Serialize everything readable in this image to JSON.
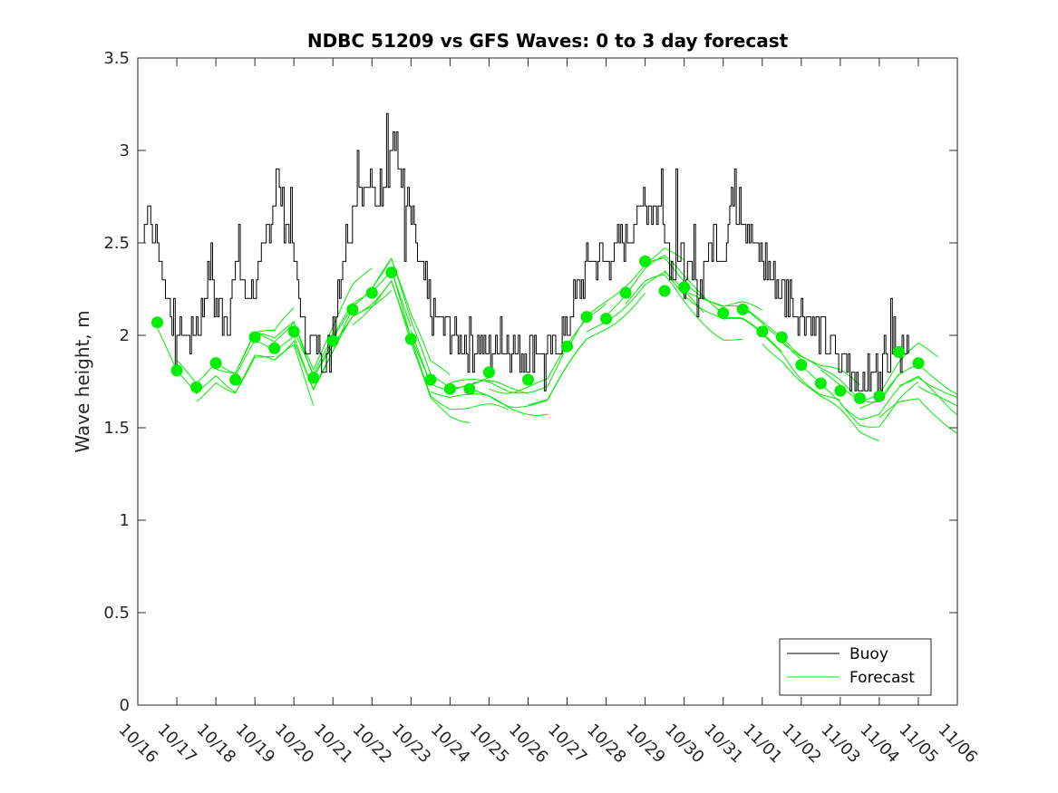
{
  "chart_data": {
    "type": "line",
    "title": "NDBC 51209 vs GFS Waves: 0 to 3 day forecast",
    "xlabel": "",
    "ylabel": "Wave height, m",
    "xlim": [
      0,
      21
    ],
    "ylim": [
      0,
      3.5
    ],
    "x_tick_labels": [
      "10/16",
      "10/17",
      "10/18",
      "10/19",
      "10/20",
      "10/21",
      "10/22",
      "10/23",
      "10/24",
      "10/25",
      "10/26",
      "10/27",
      "10/28",
      "10/29",
      "10/30",
      "10/31",
      "11/01",
      "11/02",
      "11/03",
      "11/04",
      "11/05",
      "11/06"
    ],
    "y_ticks": [
      0,
      0.5,
      1,
      1.5,
      2,
      2.5,
      3,
      3.5
    ],
    "y_tick_labels": [
      "0",
      "0.5",
      "1",
      "1.5",
      "2",
      "2.5",
      "3",
      "3.5"
    ],
    "colors": {
      "buoy": "#000000",
      "forecast": "#00ee00",
      "marker": "#00ee00",
      "axis": "#262626"
    },
    "legend": {
      "placement": "bottom-right",
      "entries": [
        {
          "label": "Buoy",
          "series": "buoy"
        },
        {
          "label": "Forecast",
          "series": "forecast"
        }
      ]
    },
    "buoy_anchors": [
      [
        0.0,
        2.5
      ],
      [
        0.2,
        2.6
      ],
      [
        0.5,
        2.5
      ],
      [
        0.75,
        2.2
      ],
      [
        1.0,
        2.05
      ],
      [
        1.3,
        2.0
      ],
      [
        1.6,
        2.1
      ],
      [
        1.85,
        2.35
      ],
      [
        2.0,
        2.15
      ],
      [
        2.3,
        2.1
      ],
      [
        2.55,
        2.4
      ],
      [
        2.8,
        2.2
      ],
      [
        3.05,
        2.25
      ],
      [
        3.35,
        2.6
      ],
      [
        3.55,
        2.85
      ],
      [
        3.8,
        2.6
      ],
      [
        4.0,
        2.4
      ],
      [
        4.25,
        2.0
      ],
      [
        4.55,
        1.95
      ],
      [
        4.85,
        1.9
      ],
      [
        5.05,
        2.15
      ],
      [
        5.3,
        2.5
      ],
      [
        5.55,
        2.75
      ],
      [
        5.85,
        2.8
      ],
      [
        6.15,
        2.75
      ],
      [
        6.35,
        2.9
      ],
      [
        6.55,
        3.05
      ],
      [
        6.75,
        2.85
      ],
      [
        7.0,
        2.6
      ],
      [
        7.25,
        2.35
      ],
      [
        7.5,
        2.15
      ],
      [
        7.8,
        2.05
      ],
      [
        8.1,
        2.0
      ],
      [
        8.4,
        1.95
      ],
      [
        8.7,
        1.95
      ],
      [
        9.0,
        1.9
      ],
      [
        9.3,
        1.95
      ],
      [
        9.6,
        1.95
      ],
      [
        9.9,
        1.9
      ],
      [
        10.2,
        1.95
      ],
      [
        10.45,
        1.85
      ],
      [
        10.7,
        1.95
      ],
      [
        11.0,
        2.05
      ],
      [
        11.3,
        2.25
      ],
      [
        11.6,
        2.4
      ],
      [
        11.9,
        2.4
      ],
      [
        12.2,
        2.45
      ],
      [
        12.5,
        2.5
      ],
      [
        12.85,
        2.65
      ],
      [
        13.15,
        2.7
      ],
      [
        13.45,
        2.65
      ],
      [
        13.7,
        2.35
      ],
      [
        14.0,
        2.45
      ],
      [
        14.25,
        2.2
      ],
      [
        14.5,
        2.35
      ],
      [
        14.75,
        2.55
      ],
      [
        15.0,
        2.45
      ],
      [
        15.25,
        2.75
      ],
      [
        15.55,
        2.65
      ],
      [
        15.85,
        2.45
      ],
      [
        16.15,
        2.35
      ],
      [
        16.4,
        2.25
      ],
      [
        16.65,
        2.2
      ],
      [
        16.9,
        2.15
      ],
      [
        17.15,
        2.1
      ],
      [
        17.4,
        2.05
      ],
      [
        17.65,
        1.95
      ],
      [
        17.9,
        1.9
      ],
      [
        18.15,
        1.85
      ],
      [
        18.4,
        1.8
      ],
      [
        18.65,
        1.75
      ],
      [
        18.9,
        1.8
      ],
      [
        19.15,
        1.9
      ],
      [
        19.4,
        2.0
      ],
      [
        19.65,
        1.95
      ],
      [
        19.75,
        2.0
      ]
    ],
    "buoy_spikes": [
      [
        0.25,
        2.7
      ],
      [
        0.95,
        1.8
      ],
      [
        1.9,
        2.5
      ],
      [
        2.6,
        2.6
      ],
      [
        3.55,
        2.9
      ],
      [
        3.9,
        2.8
      ],
      [
        4.9,
        1.8
      ],
      [
        5.65,
        3.0
      ],
      [
        6.4,
        3.2
      ],
      [
        6.55,
        3.1
      ],
      [
        6.85,
        2.4
      ],
      [
        7.9,
        2.1
      ],
      [
        9.3,
        2.1
      ],
      [
        10.4,
        1.7
      ],
      [
        12.95,
        2.8
      ],
      [
        13.4,
        2.9
      ],
      [
        13.8,
        2.9
      ],
      [
        14.0,
        2.2
      ],
      [
        14.25,
        2.6
      ],
      [
        15.3,
        2.9
      ],
      [
        15.4,
        2.8
      ],
      [
        16.1,
        2.5
      ],
      [
        16.7,
        2.3
      ],
      [
        17.95,
        1.8
      ],
      [
        18.55,
        1.7
      ],
      [
        19.3,
        2.2
      ],
      [
        19.55,
        1.8
      ]
    ],
    "forecast_markers": [
      [
        0.5,
        2.07
      ],
      [
        1.0,
        1.81
      ],
      [
        1.5,
        1.72
      ],
      [
        2.0,
        1.85
      ],
      [
        2.5,
        1.76
      ],
      [
        3.0,
        1.99
      ],
      [
        3.5,
        1.93
      ],
      [
        4.0,
        2.02
      ],
      [
        4.5,
        1.77
      ],
      [
        5.0,
        1.97
      ],
      [
        5.5,
        2.14
      ],
      [
        6.0,
        2.23
      ],
      [
        6.5,
        2.34
      ],
      [
        7.0,
        1.98
      ],
      [
        7.5,
        1.76
      ],
      [
        8.0,
        1.71
      ],
      [
        8.5,
        1.71
      ],
      [
        9.0,
        1.8
      ],
      [
        10.0,
        1.76
      ],
      [
        11.0,
        1.94
      ],
      [
        11.5,
        2.1
      ],
      [
        12.0,
        2.09
      ],
      [
        12.5,
        2.23
      ],
      [
        13.0,
        2.4
      ],
      [
        13.5,
        2.24
      ],
      [
        14.0,
        2.26
      ],
      [
        15.0,
        2.12
      ],
      [
        15.5,
        2.14
      ],
      [
        16.0,
        2.02
      ],
      [
        16.5,
        1.99
      ],
      [
        17.0,
        1.84
      ],
      [
        17.5,
        1.74
      ],
      [
        18.0,
        1.7
      ],
      [
        18.5,
        1.66
      ],
      [
        19.0,
        1.67
      ],
      [
        19.5,
        1.91
      ],
      [
        20.0,
        1.85
      ]
    ],
    "forecast_base": [
      [
        0.5,
        2.06
      ],
      [
        1.0,
        1.8
      ],
      [
        1.5,
        1.69
      ],
      [
        2.0,
        1.83
      ],
      [
        2.5,
        1.77
      ],
      [
        3.0,
        1.95
      ],
      [
        3.5,
        1.92
      ],
      [
        4.0,
        2.04
      ],
      [
        4.5,
        1.76
      ],
      [
        5.0,
        1.94
      ],
      [
        5.5,
        2.14
      ],
      [
        6.0,
        2.24
      ],
      [
        6.5,
        2.36
      ],
      [
        7.0,
        2.02
      ],
      [
        7.5,
        1.76
      ],
      [
        8.0,
        1.71
      ],
      [
        8.5,
        1.7
      ],
      [
        9.0,
        1.7
      ],
      [
        9.5,
        1.68
      ],
      [
        10.0,
        1.68
      ],
      [
        10.5,
        1.68
      ],
      [
        11.0,
        1.85
      ],
      [
        11.5,
        2.02
      ],
      [
        12.0,
        2.12
      ],
      [
        12.5,
        2.22
      ],
      [
        13.0,
        2.32
      ],
      [
        13.5,
        2.36
      ],
      [
        14.0,
        2.26
      ],
      [
        14.5,
        2.18
      ],
      [
        15.0,
        2.1
      ],
      [
        15.5,
        2.08
      ],
      [
        16.0,
        2.02
      ],
      [
        16.5,
        1.96
      ],
      [
        17.0,
        1.84
      ],
      [
        17.5,
        1.74
      ],
      [
        18.0,
        1.68
      ],
      [
        18.5,
        1.6
      ],
      [
        19.0,
        1.6
      ],
      [
        19.5,
        1.72
      ],
      [
        20.0,
        1.8
      ],
      [
        20.5,
        1.74
      ],
      [
        21.0,
        1.66
      ]
    ],
    "forecast_runs": [
      {
        "start": 0.5,
        "end": 3.5,
        "offset": -0.02
      },
      {
        "start": 1.0,
        "end": 4.0,
        "offset": 0.03
      },
      {
        "start": 1.5,
        "end": 4.5,
        "offset": -0.04
      },
      {
        "start": 2.0,
        "end": 5.0,
        "offset": 0.02
      },
      {
        "start": 2.5,
        "end": 5.5,
        "offset": -0.01
      },
      {
        "start": 3.0,
        "end": 6.0,
        "offset": 0.04
      },
      {
        "start": 3.5,
        "end": 6.5,
        "offset": -0.03
      },
      {
        "start": 4.0,
        "end": 7.0,
        "offset": 0.01
      },
      {
        "start": 4.5,
        "end": 7.5,
        "offset": -0.02
      },
      {
        "start": 5.0,
        "end": 8.0,
        "offset": 0.03
      },
      {
        "start": 5.5,
        "end": 8.5,
        "offset": -0.05
      },
      {
        "start": 6.0,
        "end": 9.0,
        "offset": 0.02
      },
      {
        "start": 6.5,
        "end": 9.5,
        "offset": -0.04
      },
      {
        "start": 7.0,
        "end": 10.0,
        "offset": 0.01
      },
      {
        "start": 7.5,
        "end": 10.5,
        "offset": -0.03
      },
      {
        "start": 8.0,
        "end": 11.0,
        "offset": 0.02
      },
      {
        "start": 8.5,
        "end": 11.5,
        "offset": -0.02
      },
      {
        "start": 9.0,
        "end": 12.0,
        "offset": 0.03
      },
      {
        "start": 10.0,
        "end": 13.0,
        "offset": -0.03
      },
      {
        "start": 11.0,
        "end": 14.0,
        "offset": 0.04
      },
      {
        "start": 11.5,
        "end": 14.5,
        "offset": -0.02
      },
      {
        "start": 12.0,
        "end": 15.0,
        "offset": 0.02
      },
      {
        "start": 12.5,
        "end": 15.5,
        "offset": -0.04
      },
      {
        "start": 13.0,
        "end": 16.0,
        "offset": 0.03
      },
      {
        "start": 13.5,
        "end": 16.5,
        "offset": -0.01
      },
      {
        "start": 14.0,
        "end": 17.0,
        "offset": 0.02
      },
      {
        "start": 15.0,
        "end": 18.0,
        "offset": -0.02
      },
      {
        "start": 15.5,
        "end": 18.5,
        "offset": 0.04
      },
      {
        "start": 16.0,
        "end": 19.0,
        "offset": -0.05
      },
      {
        "start": 16.5,
        "end": 19.5,
        "offset": 0.03
      },
      {
        "start": 17.0,
        "end": 20.0,
        "offset": -0.03
      },
      {
        "start": 17.5,
        "end": 20.5,
        "offset": 0.05
      },
      {
        "start": 18.0,
        "end": 21.0,
        "offset": -0.02
      },
      {
        "start": 18.5,
        "end": 21.0,
        "offset": 0.02
      },
      {
        "start": 19.0,
        "end": 21.0,
        "offset": -0.08
      },
      {
        "start": 19.5,
        "end": 21.0,
        "offset": 0.0
      },
      {
        "start": 20.0,
        "end": 21.0,
        "offset": -0.04
      }
    ]
  }
}
